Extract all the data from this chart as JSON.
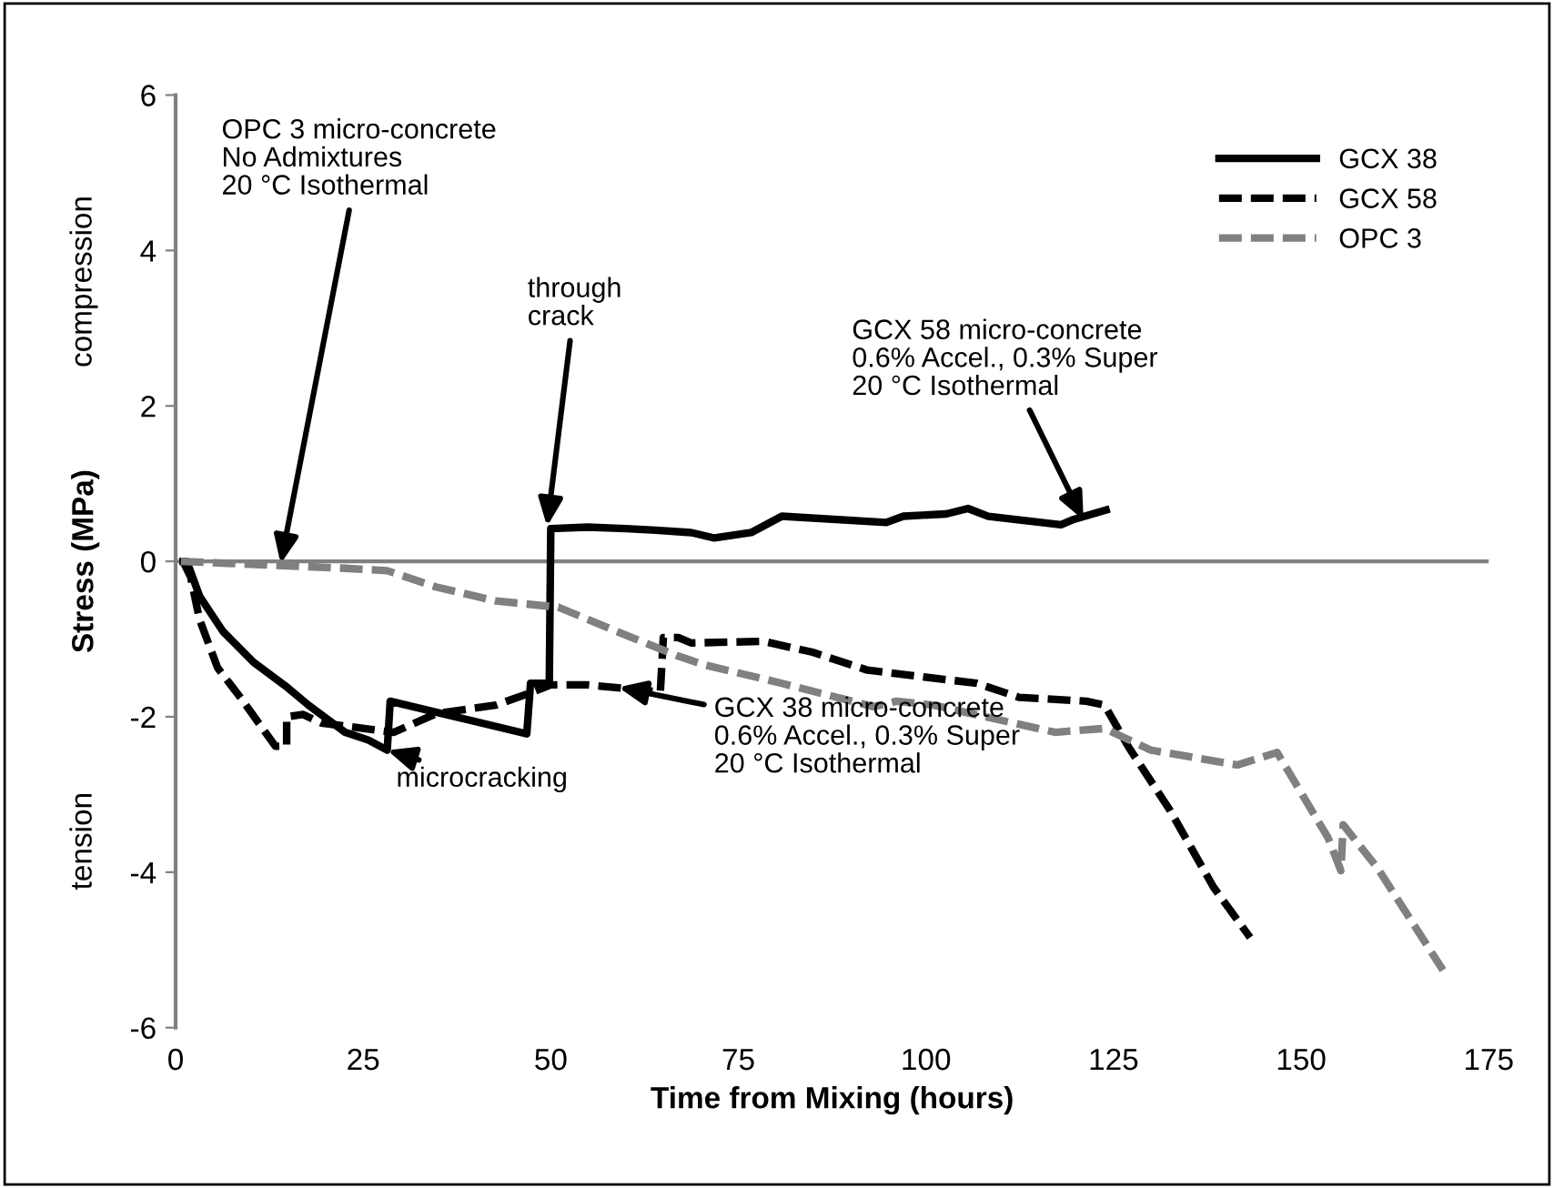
{
  "chart_data": {
    "type": "line",
    "xlabel": "Time from Mixing (hours)",
    "ylabel": "Stress (MPa)",
    "xlim": [
      0,
      175
    ],
    "xticks": [
      0,
      25,
      50,
      75,
      100,
      125,
      150,
      175
    ],
    "ylim": [
      -6,
      6
    ],
    "yticks": [
      -6,
      -4,
      -2,
      0,
      2,
      4,
      6
    ],
    "legend": "top right",
    "grid": false,
    "ref_lines": [
      {
        "axis": "y",
        "value": 0,
        "color": "#808080"
      }
    ],
    "series": [
      {
        "name": "GCX 38",
        "color": "#000000",
        "line_style": "solid",
        "x": [
          1,
          1.5,
          3.2,
          6.3,
          10.4,
          14.6,
          17.7,
          22.6,
          25.7,
          28.2,
          28.6,
          46.8,
          47.3,
          49.8,
          50,
          54.9,
          60,
          64,
          68.7,
          71.8,
          76.7,
          80.8,
          94.7,
          97,
          102.7,
          105.6,
          108.3,
          118,
          119.7,
          124
        ],
        "values": [
          0,
          0,
          -0.45,
          -0.9,
          -1.3,
          -1.6,
          -1.85,
          -2.2,
          -2.3,
          -2.43,
          -1.8,
          -2.22,
          -1.57,
          -1.57,
          0.42,
          0.44,
          0.42,
          0.4,
          0.37,
          0.3,
          0.37,
          0.58,
          0.5,
          0.58,
          0.61,
          0.68,
          0.58,
          0.47,
          0.54,
          0.66
        ]
      },
      {
        "name": "GCX 58",
        "color": "#000000",
        "line_style": "dashed",
        "x": [
          1,
          2,
          3.2,
          5.6,
          8.7,
          13.3,
          14.8,
          14.8,
          17,
          19.4,
          29.1,
          34.7,
          42.7,
          47.6,
          50,
          54.9,
          64.6,
          65,
          67,
          68.7,
          78.4,
          81.6,
          84.9,
          92.2,
          106.8,
          112.4,
          121.4,
          123.8,
          127,
          132.5,
          138.3,
          143.2
        ],
        "values": [
          0,
          -0.2,
          -0.75,
          -1.37,
          -1.76,
          -2.38,
          -2.38,
          -2.0,
          -1.97,
          -2.08,
          -2.2,
          -1.96,
          -1.85,
          -1.68,
          -1.59,
          -1.59,
          -1.68,
          -0.98,
          -0.98,
          -1.05,
          -1.03,
          -1.1,
          -1.17,
          -1.4,
          -1.57,
          -1.75,
          -1.8,
          -1.85,
          -2.39,
          -3.2,
          -4.19,
          -4.84
        ]
      },
      {
        "name": "OPC 3",
        "color": "#808080",
        "line_style": "dashed",
        "x": [
          0.7,
          12.9,
          22.6,
          28.2,
          34.7,
          42.7,
          51,
          59,
          67,
          70.4,
          80.8,
          93,
          96.1,
          101,
          117.2,
          123.8,
          130,
          141.5,
          146.8,
          153.6,
          155.3,
          155.6,
          160.2,
          168.9
        ],
        "values": [
          0,
          -0.05,
          -0.09,
          -0.12,
          -0.33,
          -0.51,
          -0.59,
          -0.91,
          -1.22,
          -1.33,
          -1.57,
          -1.87,
          -1.8,
          -1.85,
          -2.2,
          -2.15,
          -2.43,
          -2.62,
          -2.46,
          -3.56,
          -3.98,
          -3.39,
          -3.95,
          -5.26
        ]
      }
    ],
    "annotations": [
      "compression",
      "tension",
      {
        "text": "OPC 3 micro-concrete\nNo Admixtures\n20 °C Isothermal",
        "x": 14,
        "y": -0.03
      },
      {
        "text": "through\ncrack",
        "x": 49.5,
        "y": 0.45
      },
      {
        "text": "GCX 58 micro-concrete\n0.6% Accel., 0.3% Super\n20 °C Isothermal",
        "x": 121,
        "y": 0.53
      },
      {
        "text": "GCX 38 micro-concrete\n0.6% Accel., 0.3% Super\n20 °C Isothermal",
        "x": 59,
        "y": -1.62
      },
      {
        "text": "microcracking",
        "x": 28.2,
        "y": -2.43
      }
    ]
  }
}
